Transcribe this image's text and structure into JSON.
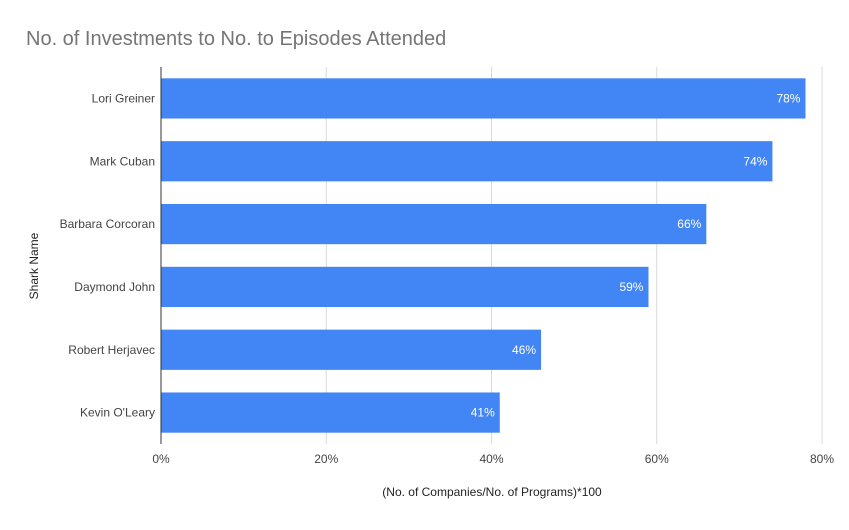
{
  "chart_data": {
    "type": "bar",
    "orientation": "horizontal",
    "title": "No. of Investments to No. to Episodes Attended",
    "xlabel": "(No. of Companies/No. of Programs)*100",
    "ylabel": "Shark Name",
    "categories": [
      "Lori Greiner",
      "Mark Cuban",
      "Barbara Corcoran",
      "Daymond John",
      "Robert Herjavec",
      "Kevin O'Leary"
    ],
    "values": [
      78,
      74,
      66,
      59,
      46,
      41
    ],
    "data_labels": [
      "78%",
      "74%",
      "66%",
      "59%",
      "46%",
      "41%"
    ],
    "xlim": [
      0,
      80
    ],
    "x_ticks": [
      0,
      20,
      40,
      60,
      80
    ],
    "x_tick_labels": [
      "0%",
      "20%",
      "40%",
      "60%",
      "80%"
    ],
    "grid": true,
    "legend": "none",
    "bar_color": "#4285f4",
    "title_color": "#757575"
  }
}
